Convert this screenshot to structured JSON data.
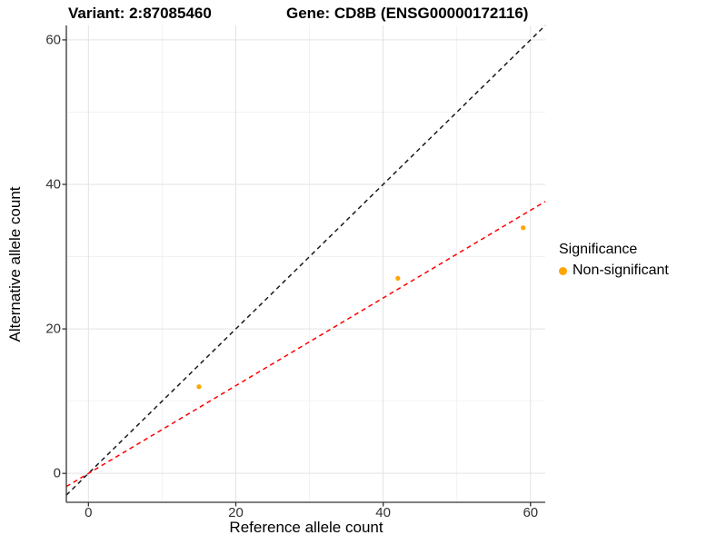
{
  "chart_data": {
    "type": "scatter",
    "title_variant": "Variant: 2:87085460",
    "title_gene": "Gene: CD8B (ENSG00000172116)",
    "xlabel": "Reference allele count",
    "ylabel": "Alternative allele count",
    "xlim": [
      -3,
      62
    ],
    "ylim": [
      -4,
      62
    ],
    "x_ticks": [
      0,
      20,
      40,
      60
    ],
    "y_ticks": [
      0,
      20,
      40,
      60
    ],
    "minor_ticks": [
      10,
      30,
      50
    ],
    "grid": "on",
    "legend": {
      "title": "Significance",
      "position": "right",
      "items": [
        {
          "label": "Non-significant",
          "color": "#FFA500"
        }
      ]
    },
    "series": [
      {
        "name": "Non-significant",
        "color": "#FFA500",
        "points": [
          [
            15,
            12
          ],
          [
            42,
            27
          ],
          [
            59,
            34
          ]
        ]
      }
    ],
    "ref_lines": [
      {
        "name": "identity-line",
        "slope": 1,
        "intercept": 0,
        "color": "#1A1A1A",
        "dash": "dashed"
      },
      {
        "name": "regression-line",
        "slope": 0.607,
        "intercept": 0,
        "color": "#FF0000",
        "dash": "dashed"
      }
    ],
    "colors": {
      "grid_major": "#E3E3E3",
      "grid_minor": "#F2F2F2",
      "axis": "#333333",
      "tick_label": "#333333"
    }
  }
}
